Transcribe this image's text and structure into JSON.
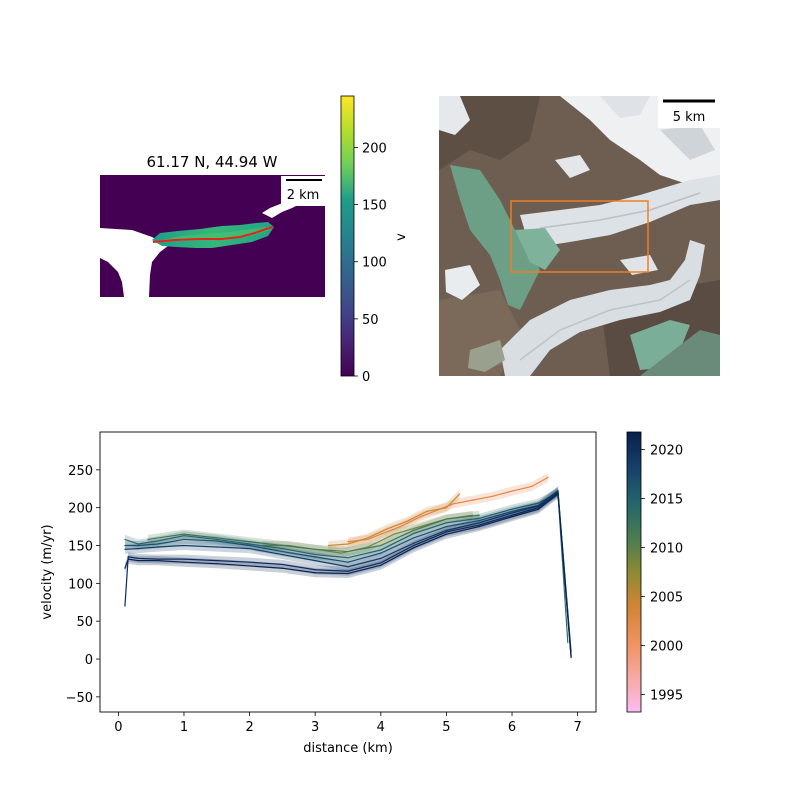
{
  "colors": {
    "velocity_low": "#440154",
    "velocity_high": "#fde725",
    "profile_line": "#e8221b",
    "study_box": "#f07f1f",
    "year_colormap": [
      "#fbbcf2",
      "#f3a381",
      "#e07f3c",
      "#b8922e",
      "#7f8a3c",
      "#4a7b55",
      "#2a6b6a",
      "#1a4f72",
      "#0d2e5e",
      "#08204d"
    ]
  },
  "map_panel": {
    "title": "61.17 N, 44.94 W",
    "scalebar_label": "2 km",
    "colorbar": {
      "label": "v",
      "ticks": [
        "0",
        "50",
        "100",
        "150",
        "200"
      ],
      "range": [
        0,
        245
      ]
    }
  },
  "satellite_panel": {
    "scalebar_label": "5 km"
  },
  "year_colorbar": {
    "ticks": [
      "1995",
      "2000",
      "2005",
      "2010",
      "2015",
      "2020"
    ],
    "range": [
      1993.2,
      2021.8
    ]
  },
  "chart_data": {
    "type": "line",
    "xlabel": "distance (km)",
    "ylabel": "velocity (m/yr)",
    "xlim": [
      -0.28,
      7.28
    ],
    "ylim": [
      -70,
      300
    ],
    "xticks": [
      "0",
      "1",
      "2",
      "3",
      "4",
      "5",
      "6",
      "7"
    ],
    "yticks": [
      "−50",
      "0",
      "50",
      "100",
      "150",
      "200",
      "250"
    ],
    "grid": false,
    "series": [
      {
        "year": 1999,
        "x": [
          3.5,
          3.8,
          4.0,
          4.3,
          4.6,
          4.9,
          5.1,
          5.4,
          5.7,
          6.0,
          6.3,
          6.55
        ],
        "values": [
          155,
          158,
          165,
          175,
          188,
          198,
          205,
          210,
          215,
          222,
          228,
          240
        ],
        "start": 3.45,
        "end": 6.6
      },
      {
        "year": 2001,
        "x": [
          3.2,
          3.5,
          3.8,
          4.1,
          4.4,
          4.7,
          5.0,
          5.2
        ],
        "values": [
          150,
          152,
          160,
          172,
          182,
          195,
          200,
          218
        ],
        "start": 3.1,
        "end": 5.2
      },
      {
        "year": 2006,
        "x": [
          2.2,
          2.6,
          3.0,
          3.4,
          3.8,
          4.2,
          4.6,
          5.0,
          5.4
        ],
        "values": [
          150,
          150,
          145,
          140,
          148,
          165,
          175,
          185,
          190
        ],
        "start": 2.2,
        "end": 5.5
      },
      {
        "year": 2009,
        "x": [
          0.45,
          1.0,
          1.5,
          2.0,
          2.5,
          3.0,
          3.5,
          4.0,
          4.5,
          5.0,
          5.5
        ],
        "values": [
          158,
          165,
          160,
          155,
          150,
          145,
          142,
          150,
          170,
          185,
          190
        ],
        "start": 0.45,
        "end": 5.5
      },
      {
        "year": 2012,
        "x": [
          0.1,
          0.3,
          0.6,
          1.0,
          1.5,
          2.0,
          2.5,
          3.0,
          3.5,
          4.0,
          4.5,
          5.0,
          5.5,
          6.0,
          6.4,
          6.7,
          6.85
        ],
        "values": [
          158,
          152,
          156,
          163,
          158,
          152,
          146,
          138,
          134,
          144,
          166,
          180,
          186,
          198,
          206,
          220,
          22
        ],
        "start": 0.1,
        "end": 6.9
      },
      {
        "year": 2015,
        "x": [
          0.1,
          0.3,
          0.6,
          1.0,
          1.5,
          2.0,
          2.5,
          3.0,
          3.5,
          4.0,
          4.5,
          5.0,
          5.5,
          6.0,
          6.4,
          6.7,
          6.9
        ],
        "values": [
          150,
          150,
          152,
          158,
          156,
          150,
          142,
          135,
          128,
          140,
          160,
          175,
          183,
          195,
          203,
          222,
          10
        ],
        "start": 0.1,
        "end": 6.9
      },
      {
        "year": 2017,
        "x": [
          0.1,
          0.3,
          0.6,
          1.0,
          1.5,
          2.0,
          2.5,
          3.0,
          3.5,
          4.0,
          4.5,
          5.0,
          5.5,
          6.0,
          6.4,
          6.7,
          6.9
        ],
        "values": [
          145,
          146,
          148,
          150,
          148,
          146,
          138,
          130,
          122,
          133,
          153,
          170,
          180,
          193,
          202,
          222,
          5
        ],
        "start": 0.1,
        "end": 6.9
      },
      {
        "year": 2019,
        "x": [
          0.1,
          0.15,
          0.3,
          0.6,
          1.0,
          1.5,
          2.0,
          2.5,
          3.0,
          3.5,
          4.0,
          4.5,
          5.0,
          5.5,
          6.0,
          6.4,
          6.7,
          6.9
        ],
        "values": [
          70,
          135,
          133,
          132,
          132,
          130,
          128,
          125,
          118,
          116,
          127,
          150,
          168,
          177,
          190,
          200,
          220,
          3
        ],
        "start": 0.1,
        "end": 6.9
      },
      {
        "year": 2021,
        "x": [
          0.1,
          0.15,
          0.3,
          0.6,
          1.0,
          1.5,
          2.0,
          2.5,
          3.0,
          3.5,
          4.0,
          4.5,
          5.0,
          5.5,
          6.0,
          6.4,
          6.7,
          6.9
        ],
        "values": [
          120,
          132,
          130,
          130,
          128,
          126,
          123,
          120,
          114,
          113,
          124,
          147,
          165,
          175,
          188,
          198,
          218,
          2
        ],
        "start": 0.1,
        "end": 6.9
      }
    ]
  }
}
